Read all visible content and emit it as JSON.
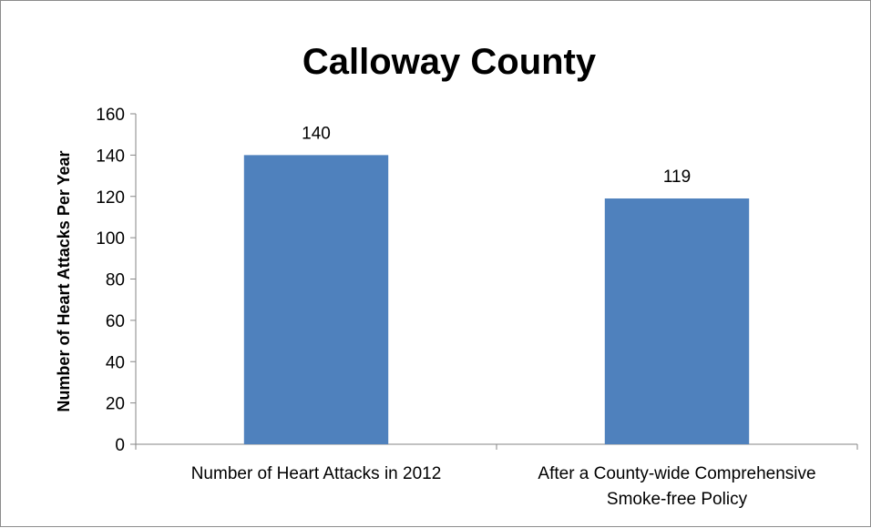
{
  "chart_data": {
    "type": "bar",
    "title": "Calloway County",
    "xlabel": "",
    "ylabel": "Number of Heart Attacks Per Year",
    "ylim": [
      0,
      160
    ],
    "yticks": [
      0,
      20,
      40,
      60,
      80,
      100,
      120,
      140,
      160
    ],
    "categories": [
      [
        "Number of Heart Attacks in 2012"
      ],
      [
        "After a County-wide Comprehensive",
        "Smoke-free Policy"
      ]
    ],
    "values": [
      140,
      119
    ],
    "data_labels": [
      "140",
      "119"
    ],
    "bar_color": "#4f81bd",
    "grid": false,
    "legend": "none"
  }
}
